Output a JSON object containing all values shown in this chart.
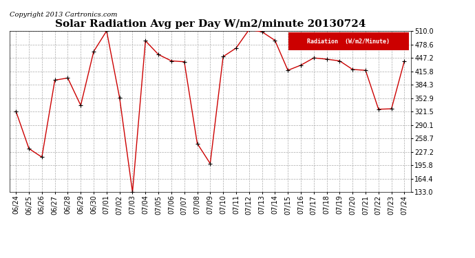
{
  "title": "Solar Radiation Avg per Day W/m2/minute 20130724",
  "copyright": "Copyright 2013 Cartronics.com",
  "legend_label": "Radiation  (W/m2/Minute)",
  "x_labels": [
    "06/24",
    "06/25",
    "06/26",
    "06/27",
    "06/28",
    "06/29",
    "06/30",
    "07/01",
    "07/02",
    "07/03",
    "07/04",
    "07/05",
    "07/06",
    "07/07",
    "07/08",
    "07/09",
    "07/10",
    "07/11",
    "07/12",
    "07/13",
    "07/14",
    "07/15",
    "07/16",
    "07/17",
    "07/18",
    "07/19",
    "07/20",
    "07/21",
    "07/22",
    "07/23",
    "07/24"
  ],
  "y_values": [
    322,
    235,
    215,
    395,
    400,
    336,
    462,
    510,
    354,
    133,
    487,
    455,
    440,
    438,
    247,
    200,
    450,
    470,
    513,
    508,
    488,
    418,
    430,
    447,
    444,
    440,
    420,
    418,
    327,
    328,
    440
  ],
  "ylim": [
    133.0,
    510.0
  ],
  "yticks": [
    133.0,
    164.4,
    195.8,
    227.2,
    258.7,
    290.1,
    321.5,
    352.9,
    384.3,
    415.8,
    447.2,
    478.6,
    510.0
  ],
  "line_color": "#cc0000",
  "marker_color": "#000000",
  "bg_color": "#ffffff",
  "grid_color": "#aaaaaa",
  "title_fontsize": 11,
  "copyright_fontsize": 7,
  "legend_bg": "#cc0000",
  "legend_text_color": "#ffffff",
  "tick_fontsize": 7,
  "ytick_fontsize": 7
}
